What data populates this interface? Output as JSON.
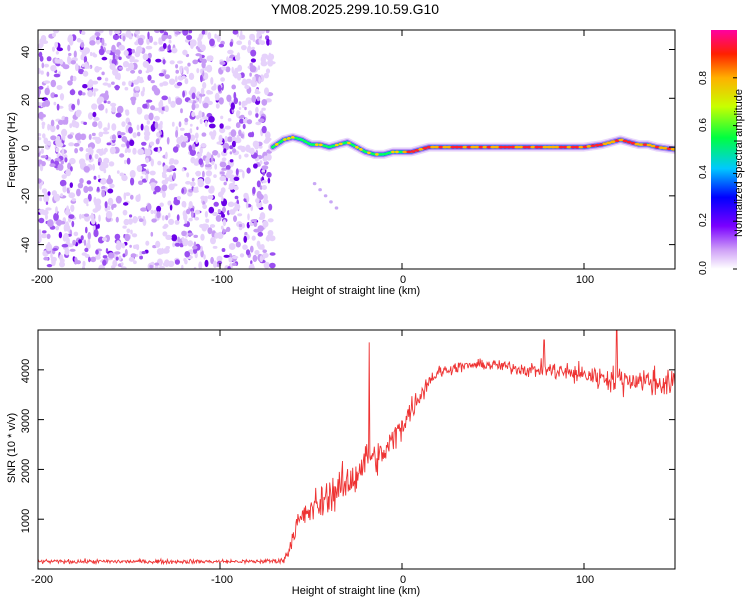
{
  "figure_title": "YM08.2025.299.10.59.G10",
  "chart_data": [
    {
      "type": "heatmap",
      "title": "YM08.2025.299.10.59.G10",
      "xlabel": "Height of straight line (km)",
      "ylabel": "Frequency (Hz)",
      "xlim": [
        -200,
        150
      ],
      "ylim": [
        -50,
        48
      ],
      "x_ticks": [
        -200,
        -100,
        0,
        100
      ],
      "y_ticks": [
        40,
        20,
        0,
        -20,
        -40
      ],
      "noise_region_x": [
        -200,
        -71
      ],
      "signal_start_x": -71,
      "signal_frequency_trace": {
        "x": [
          -71,
          -65,
          -60,
          -55,
          -50,
          -45,
          -40,
          -35,
          -30,
          -25,
          -20,
          -15,
          -10,
          -5,
          0,
          5,
          10,
          15,
          20,
          30,
          40,
          50,
          60,
          70,
          80,
          90,
          100,
          110,
          115,
          120,
          125,
          130,
          135,
          140,
          150
        ],
        "y": [
          0,
          3,
          4,
          3,
          1,
          1,
          0,
          1,
          2,
          0,
          -2,
          -3,
          -3,
          -2,
          -2,
          -2,
          -1,
          0,
          0,
          0,
          0,
          0,
          0,
          0,
          0,
          0,
          0,
          1,
          2,
          3,
          2,
          1,
          1,
          0,
          -1
        ]
      },
      "colorbar": {
        "label": "Normalized spectral amplitude",
        "range": [
          0,
          1
        ],
        "ticks": [
          "0.0",
          "0.2",
          "0.4",
          "0.6",
          "0.8"
        ]
      }
    },
    {
      "type": "line",
      "xlabel": "Height of straight line (km)",
      "ylabel": "SNR (10 * v/v)",
      "xlim": [
        -200,
        150
      ],
      "ylim": [
        0,
        4800
      ],
      "x_ticks": [
        -200,
        -100,
        0,
        100
      ],
      "y_ticks": [
        1000,
        2000,
        3000,
        4000
      ],
      "series": [
        {
          "name": "SNR",
          "color": "#ee3333",
          "x": [
            -200,
            -180,
            -160,
            -140,
            -120,
            -100,
            -80,
            -65,
            -62,
            -58,
            -55,
            -50,
            -45,
            -40,
            -35,
            -30,
            -25,
            -20,
            -18,
            -15,
            -10,
            -5,
            0,
            5,
            10,
            15,
            20,
            25,
            30,
            40,
            50,
            60,
            70,
            80,
            90,
            100,
            110,
            120,
            130,
            140,
            150
          ],
          "values": [
            150,
            150,
            150,
            150,
            150,
            150,
            150,
            170,
            400,
            900,
            1000,
            1200,
            1300,
            1500,
            1600,
            1700,
            1900,
            2200,
            2300,
            2200,
            2300,
            2600,
            2900,
            3200,
            3500,
            3800,
            3950,
            4000,
            4050,
            4100,
            4100,
            4050,
            4000,
            4000,
            3950,
            3900,
            3850,
            3800,
            3800,
            3750,
            3700
          ],
          "noise": [
            60,
            60,
            60,
            60,
            60,
            60,
            60,
            80,
            200,
            350,
            400,
            450,
            500,
            500,
            550,
            550,
            550,
            500,
            500,
            450,
            450,
            400,
            400,
            350,
            300,
            250,
            200,
            150,
            150,
            150,
            150,
            200,
            200,
            250,
            300,
            300,
            350,
            350,
            400,
            400,
            400
          ]
        }
      ],
      "spikes": [
        {
          "x": -18,
          "y": 4550
        },
        {
          "x": 118,
          "y": 4800
        },
        {
          "x": 78,
          "y": 4600
        }
      ]
    }
  ]
}
